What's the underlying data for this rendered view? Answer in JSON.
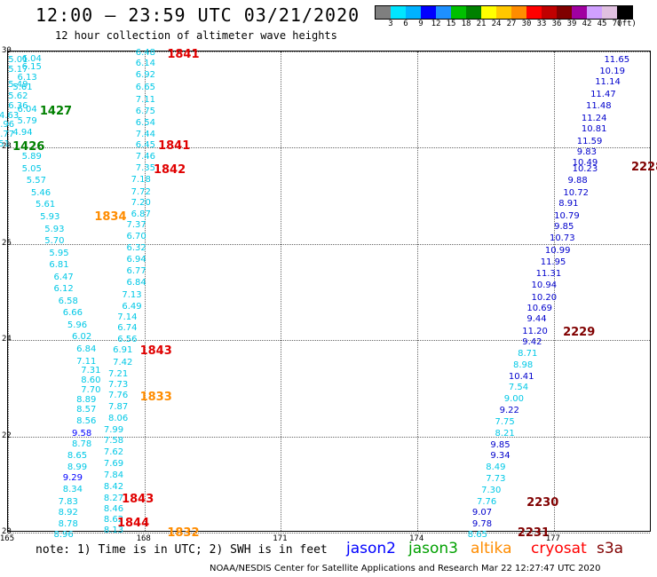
{
  "header": {
    "title": "12:00 – 23:59 UTC 03/21/2020",
    "subtitle": "12 hour collection of altimeter wave heights"
  },
  "colorbar": {
    "colors": [
      "#7f7f7f",
      "#00e5ff",
      "#00b2ff",
      "#0000ff",
      "#1e90ff",
      "#00c000",
      "#008000",
      "#ffff00",
      "#ffc800",
      "#ff8c00",
      "#ff0000",
      "#c00000",
      "#800000",
      "#a000a0",
      "#d0a0ff",
      "#e0c0e0",
      "#000000"
    ],
    "labels": [
      "3",
      "6",
      "9",
      "12",
      "15",
      "18",
      "21",
      "24",
      "27",
      "30",
      "33",
      "36",
      "39",
      "42",
      "45",
      "70",
      "(ft)"
    ]
  },
  "axes": {
    "x_ticks": [
      "165",
      "168",
      "171",
      "174",
      "177"
    ],
    "y_ticks": [
      "30",
      "28",
      "26",
      "24",
      "22",
      "20"
    ]
  },
  "wave_values": [
    {
      "v": "6.48",
      "x": 168.0,
      "y": 29.96,
      "c": "#00c8e6"
    },
    {
      "v": "6.14",
      "x": 168.0,
      "y": 29.75,
      "c": "#00c8e6"
    },
    {
      "v": "6.92",
      "x": 168.0,
      "y": 29.5,
      "c": "#00c8e6"
    },
    {
      "v": "6.65",
      "x": 168.0,
      "y": 29.25,
      "c": "#00c8e6"
    },
    {
      "v": "7.11",
      "x": 168.0,
      "y": 28.98,
      "c": "#00c8e6"
    },
    {
      "v": "6.75",
      "x": 168.0,
      "y": 28.75,
      "c": "#00c8e6"
    },
    {
      "v": "6.54",
      "x": 168.0,
      "y": 28.5,
      "c": "#00c8e6"
    },
    {
      "v": "7.44",
      "x": 168.0,
      "y": 28.27,
      "c": "#00c8e6"
    },
    {
      "v": "6.45",
      "x": 168.0,
      "y": 28.05,
      "c": "#00c8e6"
    },
    {
      "v": "7.46",
      "x": 168.0,
      "y": 27.81,
      "c": "#00c8e6"
    },
    {
      "v": "7.35",
      "x": 168.0,
      "y": 27.56,
      "c": "#00c8e6"
    },
    {
      "v": "7.18",
      "x": 167.9,
      "y": 27.32,
      "c": "#00c8e6"
    },
    {
      "v": "7.72",
      "x": 167.9,
      "y": 27.07,
      "c": "#00c8e6"
    },
    {
      "v": "7.20",
      "x": 167.9,
      "y": 26.85,
      "c": "#00c8e6"
    },
    {
      "v": "6.87",
      "x": 167.9,
      "y": 26.6,
      "c": "#00c8e6"
    },
    {
      "v": "7.37",
      "x": 167.8,
      "y": 26.38,
      "c": "#00c8e6"
    },
    {
      "v": "6.70",
      "x": 167.8,
      "y": 26.15,
      "c": "#00c8e6"
    },
    {
      "v": "6.32",
      "x": 167.8,
      "y": 25.91,
      "c": "#00c8e6"
    },
    {
      "v": "6.94",
      "x": 167.8,
      "y": 25.66,
      "c": "#00c8e6"
    },
    {
      "v": "6.77",
      "x": 167.8,
      "y": 25.42,
      "c": "#00c8e6"
    },
    {
      "v": "6.84",
      "x": 167.8,
      "y": 25.19,
      "c": "#00c8e6"
    },
    {
      "v": "7.13",
      "x": 167.7,
      "y": 24.93,
      "c": "#00c8e6"
    },
    {
      "v": "6.49",
      "x": 167.7,
      "y": 24.69,
      "c": "#00c8e6"
    },
    {
      "v": "7.14",
      "x": 167.6,
      "y": 24.47,
      "c": "#00c8e6"
    },
    {
      "v": "6.74",
      "x": 167.6,
      "y": 24.24,
      "c": "#00c8e6"
    },
    {
      "v": "6.56",
      "x": 167.6,
      "y": 24.0,
      "c": "#00c8e6"
    },
    {
      "v": "6.91",
      "x": 167.5,
      "y": 23.78,
      "c": "#00c8e6"
    },
    {
      "v": "7.42",
      "x": 167.5,
      "y": 23.53,
      "c": "#00c8e6"
    },
    {
      "v": "7.21",
      "x": 167.4,
      "y": 23.29,
      "c": "#00c8e6"
    },
    {
      "v": "7.73",
      "x": 167.4,
      "y": 23.07,
      "c": "#00c8e6"
    },
    {
      "v": "7.76",
      "x": 167.4,
      "y": 22.84,
      "c": "#00c8e6"
    },
    {
      "v": "7.87",
      "x": 167.4,
      "y": 22.6,
      "c": "#00c8e6"
    },
    {
      "v": "8.06",
      "x": 167.4,
      "y": 22.37,
      "c": "#00c8e6"
    },
    {
      "v": "7.99",
      "x": 167.3,
      "y": 22.13,
      "c": "#00c8e6"
    },
    {
      "v": "7.58",
      "x": 167.3,
      "y": 21.9,
      "c": "#00c8e6"
    },
    {
      "v": "7.62",
      "x": 167.3,
      "y": 21.66,
      "c": "#00c8e6"
    },
    {
      "v": "7.69",
      "x": 167.3,
      "y": 21.42,
      "c": "#00c8e6"
    },
    {
      "v": "7.84",
      "x": 167.3,
      "y": 21.18,
      "c": "#00c8e6"
    },
    {
      "v": "8.42",
      "x": 167.3,
      "y": 20.95,
      "c": "#00c8e6"
    },
    {
      "v": "8.27",
      "x": 167.3,
      "y": 20.71,
      "c": "#00c8e6"
    },
    {
      "v": "8.46",
      "x": 167.3,
      "y": 20.48,
      "c": "#00c8e6"
    },
    {
      "v": "8.62",
      "x": 167.3,
      "y": 20.25,
      "c": "#00c8e6"
    },
    {
      "v": "8.13",
      "x": 167.3,
      "y": 20.03,
      "c": "#00c8e6"
    },
    {
      "v": "6.04",
      "x": 165.5,
      "y": 29.84,
      "c": "#00c8e6"
    },
    {
      "v": "5.01",
      "x": 165.2,
      "y": 29.81,
      "c": "#00c8e6"
    },
    {
      "v": "6.15",
      "x": 165.5,
      "y": 29.67,
      "c": "#00c8e6"
    },
    {
      "v": "5.17",
      "x": 165.2,
      "y": 29.62,
      "c": "#00c8e6"
    },
    {
      "v": "6.13",
      "x": 165.4,
      "y": 29.45,
      "c": "#00c8e6"
    },
    {
      "v": "5.49",
      "x": 165.2,
      "y": 29.3,
      "c": "#00c8e6"
    },
    {
      "v": "5.61",
      "x": 165.3,
      "y": 29.25,
      "c": "#00c8e6"
    },
    {
      "v": "5.62",
      "x": 165.2,
      "y": 29.05,
      "c": "#00c8e6"
    },
    {
      "v": "6.36",
      "x": 165.2,
      "y": 28.85,
      "c": "#00c8e6"
    },
    {
      "v": "6.04",
      "x": 165.4,
      "y": 28.78,
      "c": "#00c8e6"
    },
    {
      "v": "4.63",
      "x": 165.0,
      "y": 28.66,
      "c": "#00c8e6"
    },
    {
      "v": "5.79",
      "x": 165.4,
      "y": 28.55,
      "c": "#00c8e6"
    },
    {
      "v": "4.96",
      "x": 164.9,
      "y": 28.47,
      "c": "#00c8e6"
    },
    {
      "v": "4.94",
      "x": 165.3,
      "y": 28.3,
      "c": "#00c8e6"
    },
    {
      "v": "6.77",
      "x": 164.9,
      "y": 28.27,
      "c": "#00c8e6"
    },
    {
      "v": "6.51",
      "x": 164.8,
      "y": 28.07,
      "c": "#00c8e6"
    },
    {
      "v": "5.89",
      "x": 165.5,
      "y": 27.8,
      "c": "#00c8e6"
    },
    {
      "v": "5.05",
      "x": 165.5,
      "y": 27.55,
      "c": "#00c8e6"
    },
    {
      "v": "5.57",
      "x": 165.6,
      "y": 27.3,
      "c": "#00c8e6"
    },
    {
      "v": "5.46",
      "x": 165.7,
      "y": 27.05,
      "c": "#00c8e6"
    },
    {
      "v": "5.61",
      "x": 165.8,
      "y": 26.8,
      "c": "#00c8e6"
    },
    {
      "v": "5.93",
      "x": 165.9,
      "y": 26.55,
      "c": "#00c8e6"
    },
    {
      "v": "5.93",
      "x": 166.0,
      "y": 26.3,
      "c": "#00c8e6"
    },
    {
      "v": "5.70",
      "x": 166.0,
      "y": 26.05,
      "c": "#00c8e6"
    },
    {
      "v": "5.95",
      "x": 166.1,
      "y": 25.8,
      "c": "#00c8e6"
    },
    {
      "v": "6.81",
      "x": 166.1,
      "y": 25.55,
      "c": "#00c8e6"
    },
    {
      "v": "6.47",
      "x": 166.2,
      "y": 25.3,
      "c": "#00c8e6"
    },
    {
      "v": "6.12",
      "x": 166.2,
      "y": 25.05,
      "c": "#00c8e6"
    },
    {
      "v": "6.58",
      "x": 166.3,
      "y": 24.8,
      "c": "#00c8e6"
    },
    {
      "v": "6.66",
      "x": 166.4,
      "y": 24.55,
      "c": "#00c8e6"
    },
    {
      "v": "5.96",
      "x": 166.5,
      "y": 24.3,
      "c": "#00c8e6"
    },
    {
      "v": "6.02",
      "x": 166.6,
      "y": 24.05,
      "c": "#00c8e6"
    },
    {
      "v": "6.84",
      "x": 166.7,
      "y": 23.8,
      "c": "#00c8e6"
    },
    {
      "v": "7.11",
      "x": 166.7,
      "y": 23.55,
      "c": "#00c8e6"
    },
    {
      "v": "7.31",
      "x": 166.8,
      "y": 23.35,
      "c": "#00c8e6"
    },
    {
      "v": "8.60",
      "x": 166.8,
      "y": 23.15,
      "c": "#00c8e6"
    },
    {
      "v": "7.70",
      "x": 166.8,
      "y": 22.95,
      "c": "#00c8e6"
    },
    {
      "v": "8.89",
      "x": 166.7,
      "y": 22.75,
      "c": "#00c8e6"
    },
    {
      "v": "8.57",
      "x": 166.7,
      "y": 22.55,
      "c": "#00c8e6"
    },
    {
      "v": "8.56",
      "x": 166.7,
      "y": 22.3,
      "c": "#00c8e6"
    },
    {
      "v": "9.58",
      "x": 166.6,
      "y": 22.05,
      "c": "#0000ff"
    },
    {
      "v": "8.78",
      "x": 166.6,
      "y": 21.82,
      "c": "#00c8e6"
    },
    {
      "v": "8.65",
      "x": 166.5,
      "y": 21.58,
      "c": "#00c8e6"
    },
    {
      "v": "8.99",
      "x": 166.5,
      "y": 21.35,
      "c": "#00c8e6"
    },
    {
      "v": "9.29",
      "x": 166.4,
      "y": 21.12,
      "c": "#0000ff"
    },
    {
      "v": "8.34",
      "x": 166.4,
      "y": 20.88,
      "c": "#00c8e6"
    },
    {
      "v": "7.83",
      "x": 166.3,
      "y": 20.62,
      "c": "#00c8e6"
    },
    {
      "v": "8.92",
      "x": 166.3,
      "y": 20.4,
      "c": "#00c8e6"
    },
    {
      "v": "8.78",
      "x": 166.3,
      "y": 20.17,
      "c": "#00c8e6"
    },
    {
      "v": "8.96",
      "x": 166.2,
      "y": 19.95,
      "c": "#00c8e6"
    },
    {
      "v": "11.65",
      "x": 178.3,
      "y": 29.81,
      "c": "#0000cc"
    },
    {
      "v": "10.19",
      "x": 178.2,
      "y": 29.58,
      "c": "#0000cc"
    },
    {
      "v": "11.14",
      "x": 178.1,
      "y": 29.35,
      "c": "#0000cc"
    },
    {
      "v": "11.47",
      "x": 178.0,
      "y": 29.1,
      "c": "#0000cc"
    },
    {
      "v": "11.48",
      "x": 177.9,
      "y": 28.85,
      "c": "#0000cc"
    },
    {
      "v": "11.24",
      "x": 177.8,
      "y": 28.6,
      "c": "#0000cc"
    },
    {
      "v": "10.81",
      "x": 177.8,
      "y": 28.37,
      "c": "#0000cc"
    },
    {
      "v": "11.59",
      "x": 177.7,
      "y": 28.12,
      "c": "#0000cc"
    },
    {
      "v": "9.83",
      "x": 177.7,
      "y": 27.9,
      "c": "#0000cc"
    },
    {
      "v": "10.49",
      "x": 177.6,
      "y": 27.68,
      "c": "#0000cc"
    },
    {
      "v": "10.23",
      "x": 177.6,
      "y": 27.55,
      "c": "#0000cc"
    },
    {
      "v": "9.88",
      "x": 177.5,
      "y": 27.3,
      "c": "#0000cc"
    },
    {
      "v": "10.72",
      "x": 177.4,
      "y": 27.05,
      "c": "#0000cc"
    },
    {
      "v": "8.91",
      "x": 177.3,
      "y": 26.82,
      "c": "#0000cc"
    },
    {
      "v": "10.79",
      "x": 177.2,
      "y": 26.57,
      "c": "#0000cc"
    },
    {
      "v": "9.85",
      "x": 177.2,
      "y": 26.35,
      "c": "#0000cc"
    },
    {
      "v": "10.73",
      "x": 177.1,
      "y": 26.1,
      "c": "#0000cc"
    },
    {
      "v": "10.99",
      "x": 177.0,
      "y": 25.85,
      "c": "#0000cc"
    },
    {
      "v": "11.95",
      "x": 176.9,
      "y": 25.6,
      "c": "#0000cc"
    },
    {
      "v": "11.31",
      "x": 176.8,
      "y": 25.37,
      "c": "#0000cc"
    },
    {
      "v": "10.94",
      "x": 176.7,
      "y": 25.12,
      "c": "#0000cc"
    },
    {
      "v": "10.20",
      "x": 176.7,
      "y": 24.88,
      "c": "#0000cc"
    },
    {
      "v": "10.69",
      "x": 176.6,
      "y": 24.65,
      "c": "#0000cc"
    },
    {
      "v": "9.44",
      "x": 176.6,
      "y": 24.42,
      "c": "#0000cc"
    },
    {
      "v": "11.20",
      "x": 176.5,
      "y": 24.17,
      "c": "#0000cc"
    },
    {
      "v": "9.42",
      "x": 176.5,
      "y": 23.95,
      "c": "#0000cc"
    },
    {
      "v": "8.71",
      "x": 176.4,
      "y": 23.71,
      "c": "#00c8e6"
    },
    {
      "v": "8.98",
      "x": 176.3,
      "y": 23.47,
      "c": "#00c8e6"
    },
    {
      "v": "10.41",
      "x": 176.2,
      "y": 23.22,
      "c": "#0000cc"
    },
    {
      "v": "7.54",
      "x": 176.2,
      "y": 23.0,
      "c": "#00c8e6"
    },
    {
      "v": "9.00",
      "x": 176.1,
      "y": 22.77,
      "c": "#00c8e6"
    },
    {
      "v": "9.22",
      "x": 176.0,
      "y": 22.52,
      "c": "#0000cc"
    },
    {
      "v": "7.75",
      "x": 175.9,
      "y": 22.29,
      "c": "#00c8e6"
    },
    {
      "v": "8.21",
      "x": 175.9,
      "y": 22.05,
      "c": "#00c8e6"
    },
    {
      "v": "9.85",
      "x": 175.8,
      "y": 21.8,
      "c": "#0000cc"
    },
    {
      "v": "9.34",
      "x": 175.8,
      "y": 21.58,
      "c": "#0000cc"
    },
    {
      "v": "8.49",
      "x": 175.7,
      "y": 21.34,
      "c": "#00c8e6"
    },
    {
      "v": "7.73",
      "x": 175.7,
      "y": 21.1,
      "c": "#00c8e6"
    },
    {
      "v": "7.30",
      "x": 175.6,
      "y": 20.86,
      "c": "#00c8e6"
    },
    {
      "v": "7.76",
      "x": 175.5,
      "y": 20.62,
      "c": "#00c8e6"
    },
    {
      "v": "9.07",
      "x": 175.4,
      "y": 20.4,
      "c": "#0000cc"
    },
    {
      "v": "9.78",
      "x": 175.4,
      "y": 20.17,
      "c": "#0000cc"
    },
    {
      "v": "8.65",
      "x": 175.3,
      "y": 19.95,
      "c": "#00c8e6"
    }
  ],
  "pass_labels": [
    {
      "v": "1841",
      "x": 168.5,
      "y": 29.95,
      "c": "#e00000"
    },
    {
      "v": "1427",
      "x": 165.7,
      "y": 28.77,
      "c": "#008000"
    },
    {
      "v": "1841",
      "x": 168.3,
      "y": 28.05,
      "c": "#e00000"
    },
    {
      "v": "1426",
      "x": 165.1,
      "y": 28.03,
      "c": "#008000"
    },
    {
      "v": "1842",
      "x": 168.2,
      "y": 27.55,
      "c": "#e00000"
    },
    {
      "v": "1834",
      "x": 166.9,
      "y": 26.57,
      "c": "#ff8c00"
    },
    {
      "v": "1843",
      "x": 167.9,
      "y": 23.78,
      "c": "#e00000"
    },
    {
      "v": "1833",
      "x": 167.9,
      "y": 22.82,
      "c": "#ff8c00"
    },
    {
      "v": "1843",
      "x": 167.5,
      "y": 20.7,
      "c": "#e00000"
    },
    {
      "v": "1844",
      "x": 167.4,
      "y": 20.2,
      "c": "#e00000"
    },
    {
      "v": "1832",
      "x": 168.5,
      "y": 20.0,
      "c": "#ff8c00"
    },
    {
      "v": "2228",
      "x": 178.7,
      "y": 27.6,
      "c": "#800000"
    },
    {
      "v": "2229",
      "x": 177.2,
      "y": 24.17,
      "c": "#800000"
    },
    {
      "v": "2230",
      "x": 176.4,
      "y": 20.63,
      "c": "#800000"
    },
    {
      "v": "2231",
      "x": 176.2,
      "y": 20.0,
      "c": "#800000"
    }
  ],
  "footer": {
    "note": "note: 1) Time is in UTC; 2) SWH is in feet",
    "credit": "NOAA/NESDIS Center for Satellite Applications and Research    Mar 22 12:27:47 UTC 2020"
  },
  "legend": [
    {
      "name": "jason2",
      "color": "#0000ff"
    },
    {
      "name": "jason3",
      "color": "#00a000"
    },
    {
      "name": "altika",
      "color": "#ff8c00"
    },
    {
      "name": "cryosat",
      "color": "#ff0000"
    },
    {
      "name": "s3a",
      "color": "#800000"
    }
  ]
}
